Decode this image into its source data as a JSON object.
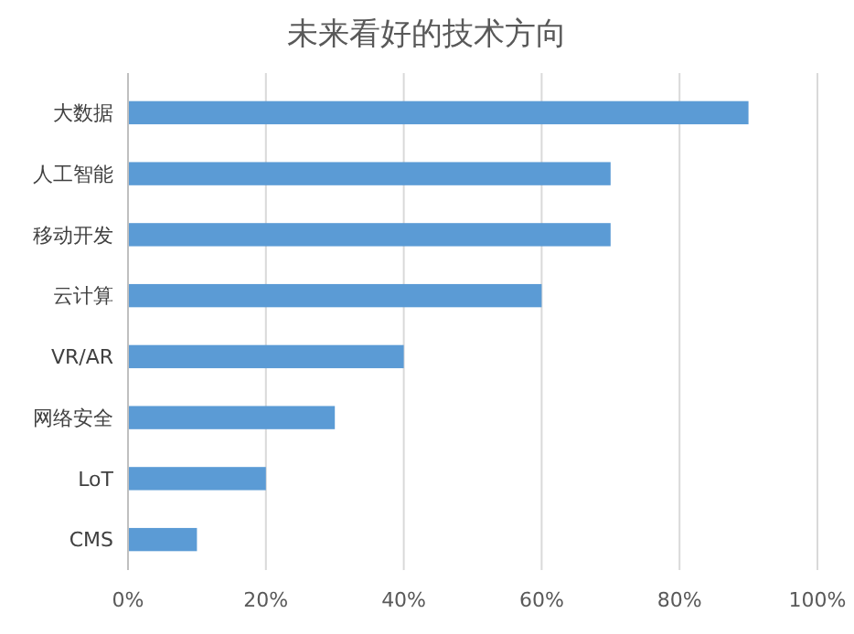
{
  "chart_data": {
    "type": "bar",
    "orientation": "horizontal",
    "title": "未来看好的技术方向",
    "categories": [
      "大数据",
      "人工智能",
      "移动开发",
      "云计算",
      "VR/AR",
      "网络安全",
      "LoT",
      "CMS"
    ],
    "values": [
      90,
      70,
      70,
      60,
      40,
      30,
      20,
      10
    ],
    "color": "#5b9bd5",
    "xlim": [
      0,
      100
    ],
    "xticks": [
      {
        "value": 0,
        "label": "0%"
      },
      {
        "value": 20,
        "label": "20%"
      },
      {
        "value": 40,
        "label": "40%"
      },
      {
        "value": 60,
        "label": "60%"
      },
      {
        "value": 80,
        "label": "80%"
      },
      {
        "value": 100,
        "label": "100%"
      }
    ],
    "grid": "x"
  }
}
